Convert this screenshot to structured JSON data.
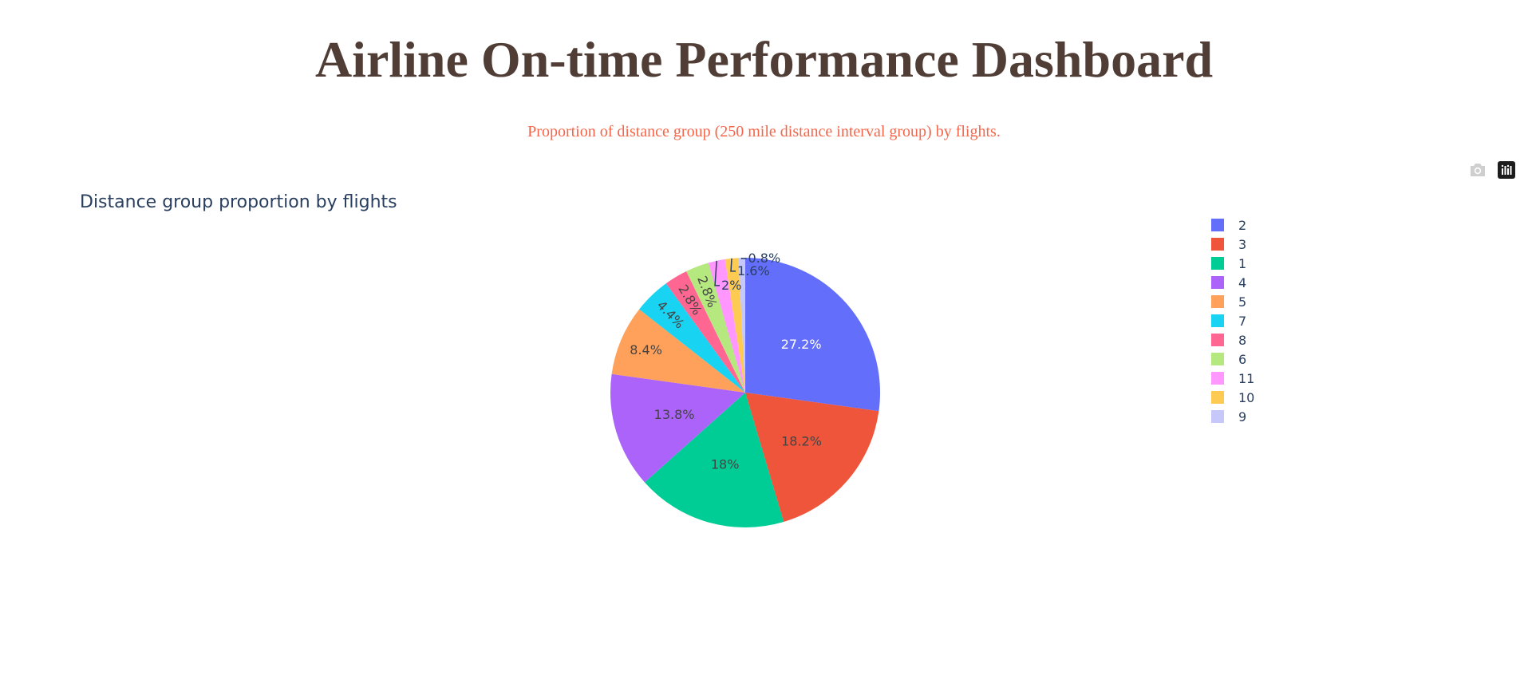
{
  "header": {
    "title": "Airline On-time Performance Dashboard",
    "subtitle": "Proportion of distance group (250 mile distance interval group) by flights."
  },
  "toolbar": {
    "camera_icon": "camera-icon",
    "plotly_logo_icon": "plotly-logo-icon"
  },
  "colors": {
    "title": "#503d36",
    "subtitle": "#f4664a",
    "chart_text": "#2a3f5f"
  },
  "chart_data": {
    "type": "pie",
    "title": "Distance group proportion by flights",
    "legend_position": "right",
    "slices": [
      {
        "label": "2",
        "value": 27.2,
        "text": "27.2%",
        "color": "#636efa"
      },
      {
        "label": "3",
        "value": 18.2,
        "text": "18.2%",
        "color": "#EF553B"
      },
      {
        "label": "1",
        "value": 18.0,
        "text": "18%",
        "color": "#00cc96"
      },
      {
        "label": "4",
        "value": 13.8,
        "text": "13.8%",
        "color": "#ab63fa"
      },
      {
        "label": "5",
        "value": 8.4,
        "text": "8.4%",
        "color": "#FFA15A"
      },
      {
        "label": "7",
        "value": 4.4,
        "text": "4.4%",
        "color": "#19d3f3"
      },
      {
        "label": "8",
        "value": 2.8,
        "text": "2.8%",
        "color": "#FF6692"
      },
      {
        "label": "6",
        "value": 2.8,
        "text": "2.8%",
        "color": "#B6E880"
      },
      {
        "label": "11",
        "value": 2.0,
        "text": "2%",
        "color": "#FF97FF"
      },
      {
        "label": "10",
        "value": 1.6,
        "text": "1.6%",
        "color": "#FECB52"
      },
      {
        "label": "9",
        "value": 0.8,
        "text": "0.8%",
        "color": "#c5c8f8"
      }
    ]
  }
}
